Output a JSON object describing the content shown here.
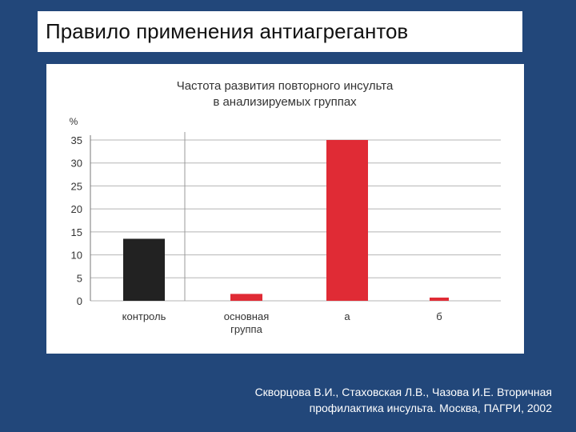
{
  "slide": {
    "title": "Правило применения антиагрегантов",
    "citation_line1": "Скворцова В.И., Стаховская Л.В., Чазова И.Е. Вторичная",
    "citation_line2": "профилактика инсульта. Москва, ПАГРИ, 2002"
  },
  "colors": {
    "background": "#22477a",
    "control_bar": "#222222",
    "treatment_bar": "#e02b35"
  },
  "chart_data": {
    "type": "bar",
    "title_line1": "Частота развития повторного инсульта",
    "title_line2": "в анализируемых группах",
    "ylabel": "%",
    "ylim": [
      0,
      35
    ],
    "yticks": [
      "0",
      "5",
      "10",
      "15",
      "20",
      "25",
      "30",
      "35"
    ],
    "grid": true,
    "categories": [
      "контроль",
      "основная группа",
      "а",
      "б"
    ],
    "category_lines": [
      [
        "контроль"
      ],
      [
        "основная",
        "группа"
      ],
      [
        "а"
      ],
      [
        "б"
      ]
    ],
    "values": [
      13.5,
      1.5,
      35,
      0.7
    ],
    "bar_colors": [
      "#222222",
      "#e02b35",
      "#e02b35",
      "#e02b35"
    ]
  }
}
